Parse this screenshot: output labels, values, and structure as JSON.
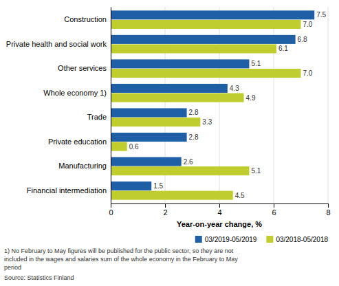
{
  "chart_data": {
    "type": "bar",
    "orientation": "horizontal",
    "categories": [
      "Construction",
      "Private health and social work",
      "Other services",
      "Whole economy 1)",
      "Trade",
      "Private education",
      "Manufacturing",
      "Financial intermediation"
    ],
    "series": [
      {
        "name": "03/2019-05/2019",
        "color": "#1F5FA6",
        "values": [
          7.5,
          6.8,
          5.1,
          4.3,
          2.8,
          2.8,
          2.6,
          1.5
        ],
        "value_labels": [
          "7.5",
          "6.8",
          "5.1",
          "4.3",
          "2.8",
          "2.8",
          "2.6",
          "1.5"
        ]
      },
      {
        "name": "03/2018-05/2018",
        "color": "#BFCE2E",
        "values": [
          7.0,
          6.1,
          7.0,
          4.9,
          3.3,
          0.6,
          5.1,
          4.5
        ],
        "value_labels": [
          "7.0",
          "6.1",
          "7.0",
          "4.9",
          "3.3",
          "0.6",
          "5.1",
          "4.5"
        ]
      }
    ],
    "xlabel": "Year-on-year change, %",
    "xlim": [
      0,
      8
    ],
    "xticks": [
      0,
      2,
      4,
      6,
      8
    ],
    "grid": true,
    "legend": "lower right",
    "data_labels": true,
    "annotations": [
      "1) No February to May figures will be published for the public sector, so they are not",
      "included in the wages and salaries sum of the whole economy in the February to May",
      "period",
      "Source: Statistics Finland"
    ]
  }
}
